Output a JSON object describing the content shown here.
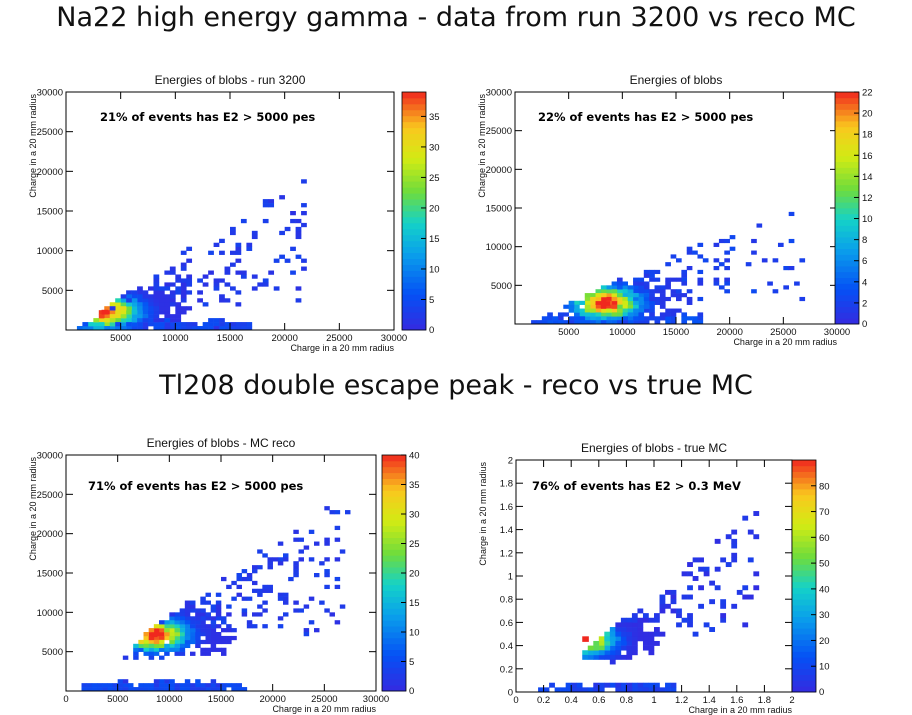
{
  "headings": {
    "top": "Na22 high energy gamma - data from run 3200 vs reco MC",
    "middle": "Tl208 double escape peak - reco vs true MC"
  },
  "chart_data": [
    {
      "type": "heatmap",
      "title": "Energies of blobs - run 3200",
      "xlabel": "Charge in a 20 mm radius",
      "ylabel": "Charge in a 20 mm radius",
      "annotation": "21% of events has E2 > 5000 pes",
      "xlim": [
        0,
        30000
      ],
      "ylim": [
        0,
        30000
      ],
      "zlim": [
        0,
        39
      ],
      "xticks": [
        "5000",
        "10000",
        "15000",
        "20000",
        "25000",
        "30000"
      ],
      "yticks": [
        "5000",
        "10000",
        "15000",
        "20000",
        "25000",
        "30000"
      ],
      "zticks": [
        "5",
        "10",
        "15",
        "20",
        "25",
        "30",
        "35"
      ],
      "bins": [
        60,
        60
      ],
      "peak": {
        "x": 3500,
        "y": 2300,
        "value": 38
      },
      "edge": {
        "x_min": 1500,
        "slope": 1.0
      }
    },
    {
      "type": "heatmap",
      "title": "Energies of blobs",
      "xlabel": "Charge in a 20 mm radius",
      "ylabel": "Charge in a 20 mm radius",
      "annotation": "22% of events has E2 > 5000 pes",
      "xlim": [
        0,
        30000
      ],
      "ylim": [
        0,
        30000
      ],
      "zlim": [
        0,
        22
      ],
      "xticks": [
        "5000",
        "10000",
        "15000",
        "20000",
        "25000",
        "30000"
      ],
      "yticks": [
        "5000",
        "10000",
        "15000",
        "20000",
        "25000",
        "30000"
      ],
      "zticks": [
        "2",
        "4",
        "6",
        "8",
        "10",
        "12",
        "14",
        "16",
        "18",
        "20",
        "22"
      ],
      "bins": [
        60,
        60
      ],
      "peak": {
        "x": 8500,
        "y": 2700,
        "value": 22
      },
      "edge": {
        "x_min": 2000,
        "slope": 0.65
      }
    },
    {
      "type": "heatmap",
      "title": "Energies of blobs - MC reco",
      "xlabel": "Charge in a 20 mm radius",
      "ylabel": "Charge in a 20 mm radius",
      "annotation": "71% of events has E2 > 5000 pes",
      "xlim": [
        0,
        30000
      ],
      "ylim": [
        0,
        30000
      ],
      "zlim": [
        0,
        40
      ],
      "xticks": [
        "0",
        "5000",
        "10000",
        "15000",
        "20000",
        "25000",
        "30000"
      ],
      "yticks": [
        "5000",
        "10000",
        "15000",
        "20000",
        "25000",
        "30000"
      ],
      "zticks": [
        "5",
        "10",
        "15",
        "20",
        "25",
        "30",
        "35",
        "40"
      ],
      "bins": [
        60,
        60
      ],
      "peak": {
        "x": 8500,
        "y": 7200,
        "value": 40
      },
      "edge": {
        "x_min": 1500,
        "slope": 1.05
      }
    },
    {
      "type": "heatmap",
      "title": "Energies of blobs - true MC",
      "xlabel": "Charge in a 20 mm radius",
      "ylabel": "Charge in a 20 mm radius",
      "annotation": "76% of events has E2 > 0.3 MeV",
      "xlim": [
        0,
        2
      ],
      "ylim": [
        0,
        2
      ],
      "zlim": [
        0,
        90
      ],
      "xticks": [
        "0",
        "0.2",
        "0.4",
        "0.6",
        "0.8",
        "1",
        "1.2",
        "1.4",
        "1.6",
        "1.8",
        "2"
      ],
      "yticks": [
        "0",
        "0.2",
        "0.4",
        "0.6",
        "0.8",
        "1",
        "1.2",
        "1.4",
        "1.6",
        "1.8",
        "2"
      ],
      "zticks": [
        "10",
        "20",
        "30",
        "40",
        "50",
        "60",
        "70",
        "80"
      ],
      "bins": [
        50,
        50
      ],
      "peak": {
        "x": 0.5,
        "y": 0.46,
        "value": 88
      },
      "edge": {
        "x_min": 0.2,
        "slope": 1.0
      }
    }
  ]
}
